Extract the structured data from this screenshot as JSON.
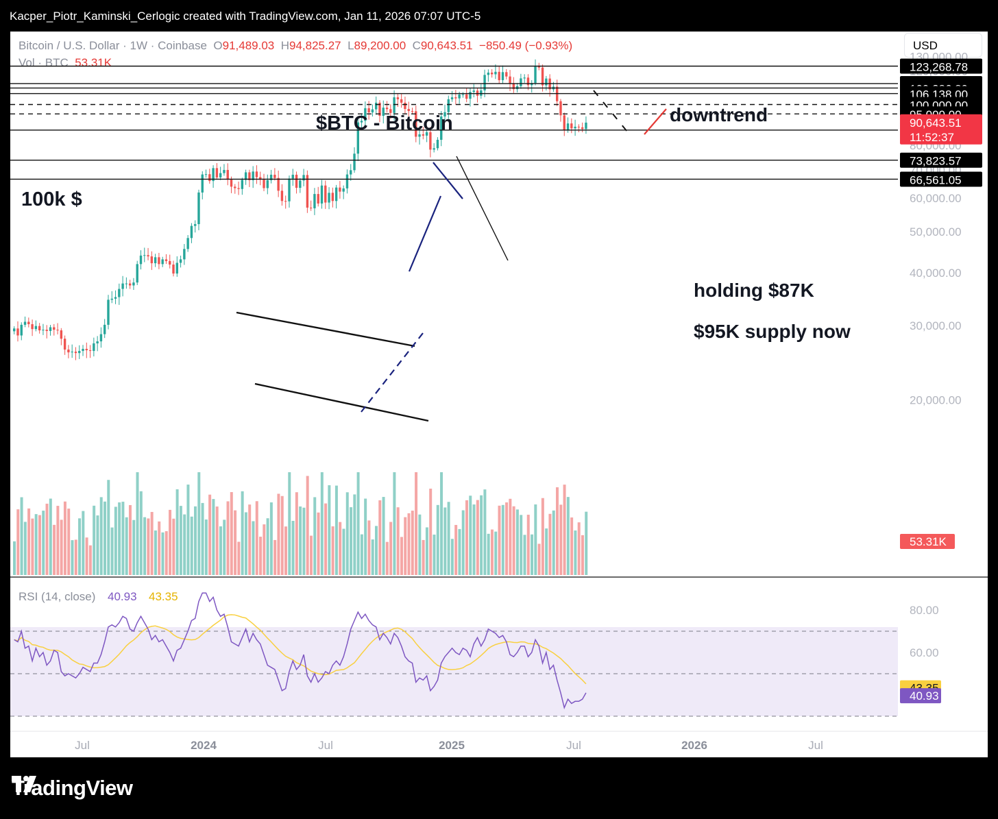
{
  "header": {
    "attribution": "Kacper_Piotr_Kaminski_Cerlogic created with TradingView.com, Jan 11, 2026 07:07 UTC-5",
    "symbol": "Bitcoin / U.S. Dollar · 1W · Coinbase",
    "o_label": "O",
    "o_value": "91,489.03",
    "h_label": "H",
    "h_value": "94,825.27",
    "l_label": "L",
    "l_value": "89,200.00",
    "c_label": "C",
    "c_value": "90,643.51",
    "change": "−850.49 (−0.93%)",
    "vol_label": "Vol · BTC",
    "vol_value": "53.31K",
    "currency": "USD"
  },
  "brand": {
    "name": "TradingView"
  },
  "colors": {
    "up": "#26a69a",
    "down": "#ef5350",
    "vol_up": "#8fd0c7",
    "vol_down": "#f4a6a5",
    "rsi": "#7e57c2",
    "rsi_ma": "#f9d03f",
    "rsi_band": "#efeaf8"
  },
  "chart_data": [
    {
      "type": "candlestick",
      "title": "$BTC - Bitcoin",
      "interval": "1W",
      "y_scale": "log",
      "ylim": [
        17000,
        132000
      ],
      "y_ticks": [
        "130,000.00",
        "120,000.00",
        "110,000.00",
        "100,000.00",
        "90,000.00",
        "80,000.00",
        "70,000.00",
        "60,000.00",
        "50,000.00",
        "40,000.00",
        "30,000.00",
        "20,000.00"
      ],
      "x_ticks": [
        "Jul",
        "2024",
        "Jul",
        "2025",
        "Jul",
        "2026",
        "Jul"
      ],
      "price_levels": [
        {
          "label": "123,268.78",
          "value": 123268.78,
          "style": "solid"
        },
        {
          "label": "112,078.26",
          "value": 112078.26,
          "style": "solid"
        },
        {
          "label": "109,386.89",
          "value": 109386.89,
          "style": "solid"
        },
        {
          "label": "106,138.00",
          "value": 106138,
          "style": "solid"
        },
        {
          "label": "100,000.00",
          "value": 100000,
          "style": "dashed"
        },
        {
          "label": "95,000.00",
          "value": 95000,
          "style": "dashed"
        },
        {
          "label": "87,000.00",
          "value": 87000,
          "style": "solid"
        },
        {
          "label": "73,823.57",
          "value": 73823.57,
          "style": "solid"
        },
        {
          "label": "66,561.05",
          "value": 66561.05,
          "style": "solid"
        }
      ],
      "last_price": {
        "label": "90,643.51",
        "countdown": "11:52:37",
        "value": 90643.51
      },
      "volume_last": "53.31K",
      "annotations": [
        "100k $",
        "downtrend",
        "holding $87K",
        "$95K supply now"
      ],
      "weekly_closes_approx": [
        [
          29500,
          28400,
          30100,
          30600,
          30200,
          29400,
          29900,
          29200,
          29300,
          29100,
          29700,
          29300,
          29200,
          27900,
          26300,
          25900,
          26000,
          25800,
          26100,
          26400,
          26200,
          26100,
          27200,
          27500,
          28600,
          30100,
          34500,
          34700,
          35000,
          36600,
          37700,
          37700,
          37300,
          37900,
          41900,
          43900,
          44000,
          43700,
          42100,
          43500,
          41900,
          43000,
          42600,
          41800,
          39800,
          42200,
          43000,
          45500,
          48300,
          51600,
          52100,
          61900,
          68300,
          68400,
          65900,
          70700,
          67200,
          68800,
          70000,
          66400,
          63900,
          63400,
          63100,
          66300,
          69100,
          66200,
          69400,
          67300,
          66400,
          63400,
          66200,
          68200,
          67000,
          62500,
          59100,
          59000,
          66800,
          68200,
          63500,
          66100,
          68100,
          57000,
          56800,
          61400,
          58300,
          64300,
          58600,
          61800,
          59100,
          63600,
          62200,
          63300,
          68300,
          69900,
          76500,
          90700,
          91500,
          98000,
          95800,
          97400,
          101000,
          94000,
          98300,
          97500,
          95500,
          104000,
          102900,
          101000,
          97600,
          96500,
          96400,
          83900,
          85000,
          84400,
          86000,
          78200,
          78800,
          82500,
          93700,
          95900,
          102900,
          104000,
          103400,
          105600,
          105700,
          103200,
          107100,
          107900,
          104900,
          108000,
          117500,
          119000,
          117900,
          119500,
          114200,
          119300,
          116500,
          112000,
          108700,
          110500,
          115300,
          115800,
          111100,
          112400,
          123000,
          122300,
          111000,
          115200,
          108600,
          110200,
          101800,
          94300,
          87000,
          90200,
          87800,
          88600,
          88300,
          87500,
          90600
        ]
      ]
    },
    {
      "type": "line",
      "title": "RSI (14, close)",
      "series": [
        {
          "name": "RSI",
          "last": "40.93",
          "color": "#7e57c2"
        },
        {
          "name": "RSI-based MA",
          "last": "43.35",
          "color": "#f9d03f"
        }
      ],
      "y_ticks": [
        "80.00",
        "60.00"
      ],
      "bands": [
        70,
        50,
        30
      ],
      "rsi_approx": [
        66,
        65,
        70,
        62,
        63,
        56,
        62,
        58,
        60,
        54,
        56,
        61,
        60,
        51,
        49,
        50,
        49,
        48,
        50,
        53,
        52,
        51,
        55,
        55,
        59,
        65,
        72,
        73,
        72,
        74,
        77,
        76,
        71,
        70,
        74,
        77,
        74,
        71,
        66,
        68,
        65,
        66,
        63,
        60,
        56,
        61,
        62,
        66,
        70,
        75,
        76,
        84,
        88,
        88,
        84,
        86,
        80,
        77,
        78,
        72,
        65,
        64,
        63,
        67,
        71,
        65,
        69,
        66,
        64,
        59,
        54,
        53,
        52,
        47,
        42,
        43,
        51,
        56,
        52,
        54,
        59,
        49,
        46,
        50,
        46,
        48,
        51,
        50,
        54,
        56,
        54,
        58,
        64,
        71,
        75,
        79,
        76,
        78,
        75,
        73,
        72,
        66,
        69,
        67,
        64,
        69,
        67,
        63,
        58,
        56,
        55,
        46,
        48,
        47,
        49,
        42,
        44,
        47,
        55,
        58,
        60,
        62,
        60,
        59,
        62,
        61,
        58,
        64,
        67,
        63,
        66,
        71,
        70,
        69,
        67,
        68,
        65,
        59,
        58,
        60,
        63,
        63,
        58,
        60,
        66,
        63,
        55,
        60,
        52,
        54,
        47,
        41,
        34,
        38,
        36,
        37,
        37,
        38,
        41
      ]
    }
  ]
}
